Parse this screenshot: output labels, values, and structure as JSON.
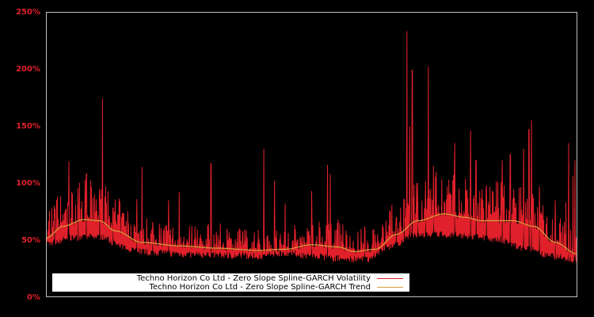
{
  "chart_data": {
    "type": "line",
    "title": "",
    "xlabel": "",
    "ylabel": "",
    "ylim": [
      0,
      250
    ],
    "yticks": [
      "0%",
      "50%",
      "100%",
      "150%",
      "200%",
      "250%"
    ],
    "grid": false,
    "legend_position": "lower-left (inside plot)",
    "background": "#000000",
    "axis_color": "#c0c0c0",
    "tick_label_color": "#e0202a",
    "series": [
      {
        "name": "Techno Horizon Co Ltd - Zero Slope Spline-GARCH Volatility",
        "color": "#e0202a",
        "style": "noisy line",
        "baseline_floor_approx": [
          [
            0.0,
            44
          ],
          [
            0.05,
            49
          ],
          [
            0.1,
            50
          ],
          [
            0.15,
            40
          ],
          [
            0.2,
            36
          ],
          [
            0.3,
            34
          ],
          [
            0.4,
            33
          ],
          [
            0.45,
            36
          ],
          [
            0.5,
            33
          ],
          [
            0.55,
            31
          ],
          [
            0.6,
            30
          ],
          [
            0.65,
            42
          ],
          [
            0.7,
            52
          ],
          [
            0.75,
            52
          ],
          [
            0.8,
            50
          ],
          [
            0.85,
            48
          ],
          [
            0.9,
            40
          ],
          [
            0.95,
            33
          ],
          [
            1.0,
            30
          ]
        ],
        "spikes": [
          [
            0.005,
            76
          ],
          [
            0.015,
            70
          ],
          [
            0.02,
            88
          ],
          [
            0.04,
            80
          ],
          [
            0.042,
            119
          ],
          [
            0.06,
            80
          ],
          [
            0.075,
            108
          ],
          [
            0.09,
            90
          ],
          [
            0.1,
            95
          ],
          [
            0.105,
            174
          ],
          [
            0.11,
            88
          ],
          [
            0.125,
            78
          ],
          [
            0.17,
            86
          ],
          [
            0.18,
            114
          ],
          [
            0.2,
            66
          ],
          [
            0.23,
            85
          ],
          [
            0.25,
            92
          ],
          [
            0.28,
            62
          ],
          [
            0.31,
            117
          ],
          [
            0.34,
            60
          ],
          [
            0.37,
            58
          ],
          [
            0.41,
            130
          ],
          [
            0.43,
            102
          ],
          [
            0.45,
            82
          ],
          [
            0.5,
            93
          ],
          [
            0.53,
            116
          ],
          [
            0.535,
            108
          ],
          [
            0.55,
            68
          ],
          [
            0.6,
            62
          ],
          [
            0.62,
            55
          ],
          [
            0.64,
            67
          ],
          [
            0.66,
            70
          ],
          [
            0.675,
            85
          ],
          [
            0.68,
            233
          ],
          [
            0.685,
            150
          ],
          [
            0.69,
            199
          ],
          [
            0.7,
            100
          ],
          [
            0.715,
            102
          ],
          [
            0.72,
            202
          ],
          [
            0.73,
            115
          ],
          [
            0.735,
            110
          ],
          [
            0.75,
            84
          ],
          [
            0.77,
            135
          ],
          [
            0.8,
            146
          ],
          [
            0.81,
            120
          ],
          [
            0.83,
            98
          ],
          [
            0.86,
            120
          ],
          [
            0.875,
            125
          ],
          [
            0.9,
            130
          ],
          [
            0.91,
            147
          ],
          [
            0.915,
            155
          ],
          [
            0.93,
            97
          ],
          [
            0.96,
            85
          ],
          [
            0.98,
            83
          ],
          [
            0.985,
            135
          ],
          [
            0.993,
            106
          ],
          [
            0.997,
            120
          ]
        ]
      },
      {
        "name": "Techno Horizon Co Ltd - Zero Slope Spline-GARCH Trend",
        "color": "#d4a03a",
        "style": "smooth line",
        "points": [
          [
            0.0,
            52
          ],
          [
            0.03,
            62
          ],
          [
            0.07,
            68
          ],
          [
            0.1,
            67
          ],
          [
            0.13,
            58
          ],
          [
            0.18,
            48
          ],
          [
            0.25,
            45
          ],
          [
            0.32,
            43
          ],
          [
            0.4,
            41
          ],
          [
            0.45,
            42
          ],
          [
            0.5,
            46
          ],
          [
            0.55,
            44
          ],
          [
            0.58,
            40
          ],
          [
            0.62,
            42
          ],
          [
            0.66,
            55
          ],
          [
            0.7,
            67
          ],
          [
            0.75,
            73
          ],
          [
            0.79,
            70
          ],
          [
            0.82,
            67
          ],
          [
            0.88,
            67
          ],
          [
            0.92,
            62
          ],
          [
            0.96,
            48
          ],
          [
            1.0,
            38
          ]
        ]
      }
    ]
  },
  "legend": {
    "items": [
      {
        "label": "Techno Horizon Co Ltd - Zero Slope Spline-GARCH Volatility",
        "color": "#e0202a"
      },
      {
        "label": "Techno Horizon Co Ltd - Zero Slope Spline-GARCH Trend",
        "color": "#d4a03a"
      }
    ]
  }
}
